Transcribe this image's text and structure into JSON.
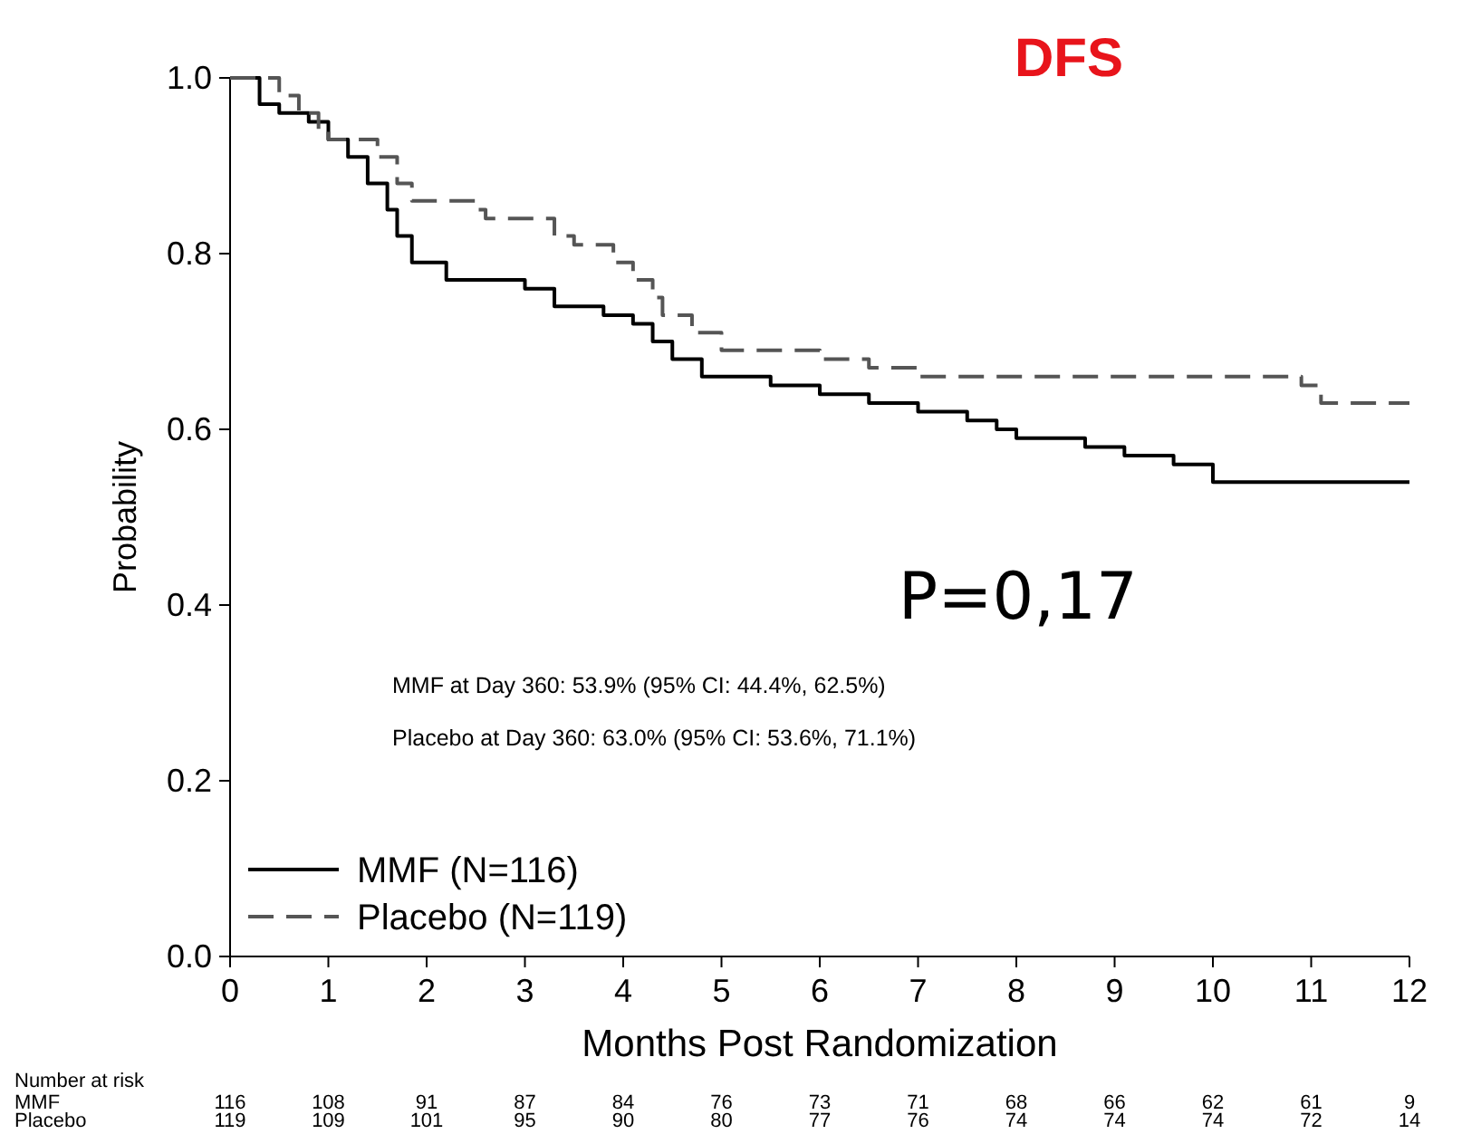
{
  "chart_data": {
    "type": "step",
    "title": "DFS",
    "xlabel": "Months Post Randomization",
    "ylabel": "Probability",
    "xlim": [
      0,
      12
    ],
    "ylim": [
      0,
      1
    ],
    "xticks": [
      0,
      1,
      2,
      3,
      4,
      5,
      6,
      7,
      8,
      9,
      10,
      11,
      12
    ],
    "yticks": [
      {
        "value": 0,
        "label": "0.0"
      },
      {
        "value": 0.2,
        "label": "0.2"
      },
      {
        "value": 0.4,
        "label": "0.4"
      },
      {
        "value": 0.6,
        "label": "0.6"
      },
      {
        "value": 0.8,
        "label": "0.8"
      },
      {
        "value": 1,
        "label": "1.0"
      }
    ],
    "series": [
      {
        "name": "MMF (N=116)",
        "color": "#000000",
        "line_style": "solid",
        "x": [
          0,
          0.3,
          0.5,
          0.8,
          1.0,
          1.2,
          1.4,
          1.6,
          1.7,
          1.85,
          2.2,
          3.0,
          3.3,
          3.8,
          4.1,
          4.3,
          4.5,
          4.8,
          5.5,
          6.0,
          6.5,
          7.0,
          7.5,
          7.8,
          8.0,
          8.7,
          9.1,
          9.6,
          10.0,
          12
        ],
        "values": [
          1.0,
          0.97,
          0.96,
          0.95,
          0.93,
          0.91,
          0.88,
          0.85,
          0.82,
          0.79,
          0.77,
          0.76,
          0.74,
          0.73,
          0.72,
          0.7,
          0.68,
          0.66,
          0.65,
          0.64,
          0.63,
          0.62,
          0.61,
          0.6,
          0.59,
          0.58,
          0.57,
          0.56,
          0.54,
          0.54
        ]
      },
      {
        "name": "Placebo (N=119)",
        "color": "#555555",
        "line_style": "dashed",
        "x": [
          0,
          0.5,
          0.7,
          0.9,
          1.0,
          1.5,
          1.7,
          1.85,
          2.5,
          2.6,
          3.3,
          3.5,
          3.9,
          4.1,
          4.3,
          4.4,
          4.7,
          5.0,
          6.0,
          6.5,
          7.0,
          10.9,
          11.1,
          12
        ],
        "values": [
          1.0,
          0.98,
          0.96,
          0.94,
          0.93,
          0.91,
          0.88,
          0.86,
          0.85,
          0.84,
          0.82,
          0.81,
          0.79,
          0.77,
          0.75,
          0.73,
          0.71,
          0.69,
          0.68,
          0.67,
          0.66,
          0.65,
          0.63,
          0.63
        ]
      }
    ],
    "legend": "bottom left",
    "marker": "none",
    "grid": false,
    "annotations": [
      "P=0,17",
      "MMF at Day 360: 53.9% (95% CI: 44.4%, 62.5%)",
      "Placebo at Day 360: 63.0% (95% CI: 53.6%, 71.1%)",
      "Number at risk",
      "MMF",
      "116",
      "108",
      "91",
      "87",
      "84",
      "76",
      "73",
      "71",
      "68",
      "66",
      "62",
      "61",
      "9",
      "Placebo",
      "119",
      "109",
      "101",
      "95",
      "90",
      "80",
      "77",
      "76",
      "74",
      "74",
      "74",
      "72",
      "14"
    ]
  }
}
